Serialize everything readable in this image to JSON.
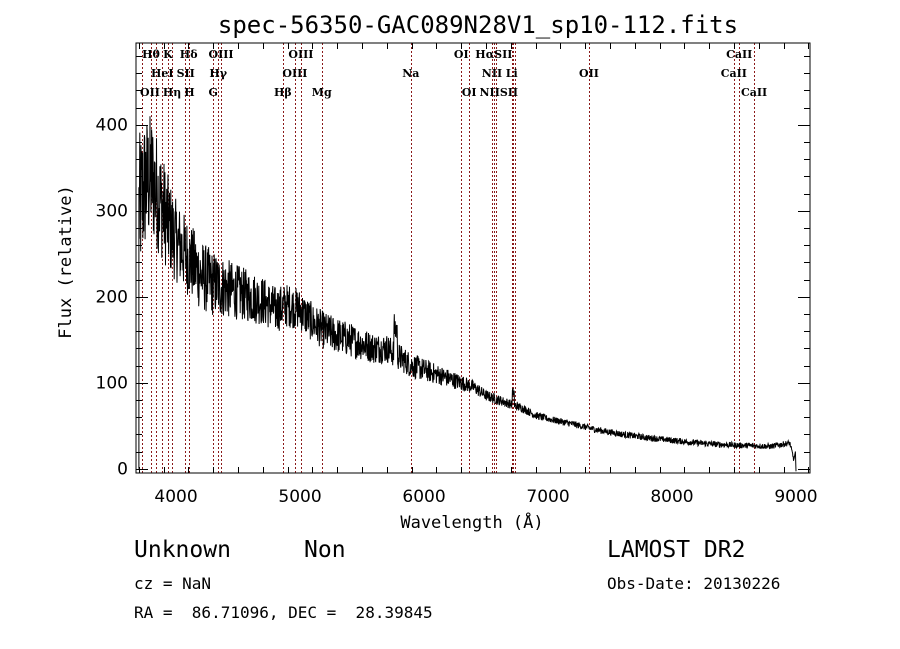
{
  "chart_data": {
    "type": "line",
    "title": "spec-56350-GAC089N28V1_sp10-112.fits",
    "xlabel": "Wavelength (Å)",
    "ylabel": "Flux (relative)",
    "xlim": [
      3677,
      9113
    ],
    "ylim": [
      -5,
      495
    ],
    "x_ticks": [
      4000,
      5000,
      6000,
      7000,
      8000,
      9000
    ],
    "x_tick_labels": [
      "4000",
      "5000",
      "6000",
      "7000",
      "8000",
      "9000"
    ],
    "y_ticks": [
      0,
      100,
      200,
      300,
      400
    ],
    "y_tick_labels": [
      "0",
      "100",
      "200",
      "300",
      "400"
    ],
    "grid": false,
    "series": [
      {
        "name": "spectrum",
        "color": "#000000",
        "trend_x": [
          3700,
          3750,
          3800,
          3850,
          3900,
          3950,
          4000,
          4100,
          4200,
          4300,
          4400,
          4500,
          4600,
          4700,
          4800,
          4900,
          5000,
          5100,
          5200,
          5300,
          5400,
          5500,
          5600,
          5700,
          5800,
          5900,
          6000,
          6100,
          6200,
          6300,
          6400,
          6500,
          6600,
          6700,
          6800,
          6900,
          7000,
          7200,
          7400,
          7600,
          7800,
          8000,
          8200,
          8400,
          8600,
          8800,
          8950,
          9000
        ],
        "trend_y": [
          300,
          330,
          340,
          320,
          300,
          280,
          265,
          245,
          225,
          215,
          210,
          205,
          200,
          195,
          185,
          190,
          185,
          170,
          160,
          155,
          150,
          145,
          140,
          140,
          130,
          120,
          115,
          110,
          105,
          100,
          95,
          85,
          80,
          75,
          70,
          62,
          58,
          52,
          45,
          40,
          36,
          33,
          30,
          28,
          27,
          26,
          30,
          0
        ],
        "noise_amplitude_x": [
          3700,
          4000,
          4500,
          5000,
          5800,
          6500,
          7000,
          9000
        ],
        "noise_amplitude_y": [
          110,
          60,
          40,
          30,
          20,
          8,
          5,
          4
        ]
      }
    ],
    "emission_lines": {
      "color": "#8b1a1a",
      "style": "dotted",
      "wavelengths": [
        3727,
        3798,
        3835,
        3889,
        3934,
        3969,
        4072,
        4102,
        4300,
        4340,
        4363,
        4861,
        4959,
        5007,
        5175,
        5893,
        6300,
        6364,
        6548,
        6563,
        6583,
        6708,
        6717,
        6731,
        7330,
        8498,
        8542,
        8662
      ]
    },
    "line_labels": {
      "row1": [
        "Hθ",
        "K",
        "Hδ",
        "OIII",
        "OIII",
        "OI",
        "HαSII",
        "CaII"
      ],
      "row2": [
        "HeI",
        "SII",
        "Hγ",
        "OIII",
        "Na",
        "NII",
        "Li",
        "OII",
        "CaII"
      ],
      "row3": [
        "OII",
        "Hη",
        "H",
        "G",
        "Hβ",
        "Mg",
        "OI",
        "NIISII",
        "CaII"
      ],
      "row1_wl": [
        3798,
        3934,
        4102,
        4363,
        5007,
        6300,
        6563,
        8542
      ],
      "row2_wl": [
        3889,
        4072,
        4340,
        4959,
        5893,
        6548,
        6708,
        7330,
        8498
      ],
      "row3_wl": [
        3727,
        3835,
        3969,
        4300,
        4861,
        5175,
        6364,
        6583,
        8662
      ]
    }
  },
  "info": {
    "class": "Unknown",
    "subclass": "Non",
    "cz": "cz = NaN",
    "coords": "RA =  86.71096, DEC =  28.39845",
    "survey": "LAMOST DR2",
    "obs_date": "Obs-Date: 20130226"
  }
}
